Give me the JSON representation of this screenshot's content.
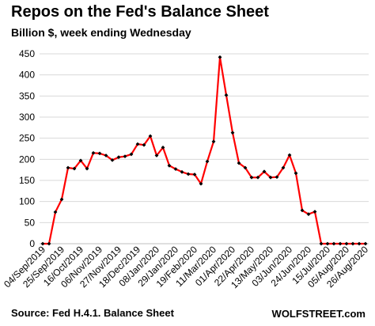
{
  "chart_data": {
    "type": "line",
    "title": "Repos on the Fed's Balance Sheet",
    "subtitle": "Billion $, week ending Wednesday",
    "xlabel": "",
    "ylabel": "",
    "ylim": [
      0,
      450
    ],
    "yticks": [
      0,
      50,
      100,
      150,
      200,
      250,
      300,
      350,
      400,
      450
    ],
    "grid": true,
    "legend": "none",
    "line_color": "#ff0000",
    "marker_color": "#000000",
    "grid_color": "#d9d9d9",
    "x_tick_labels": [
      "04/Sep/2019",
      "25/Sep/2019",
      "16/Oct/2019",
      "06/Nov/2019",
      "27/Nov/2019",
      "18/Dec/2019",
      "08/Jan/2020",
      "29/Jan/2020",
      "19/Feb/2020",
      "11/Mar/2020",
      "01/Apr/2020",
      "22/Apr/2020",
      "13/May/2020",
      "03/Jun/2020",
      "24/Jun/2020",
      "15/Jul/2020",
      "05/Aug/2020",
      "26/Aug/2020"
    ],
    "x": [
      "04/Sep/2019",
      "11/Sep/2019",
      "18/Sep/2019",
      "25/Sep/2019",
      "02/Oct/2019",
      "09/Oct/2019",
      "16/Oct/2019",
      "23/Oct/2019",
      "30/Oct/2019",
      "06/Nov/2019",
      "13/Nov/2019",
      "20/Nov/2019",
      "27/Nov/2019",
      "04/Dec/2019",
      "11/Dec/2019",
      "18/Dec/2019",
      "25/Dec/2019",
      "01/Jan/2020",
      "08/Jan/2020",
      "15/Jan/2020",
      "22/Jan/2020",
      "29/Jan/2020",
      "05/Feb/2020",
      "12/Feb/2020",
      "19/Feb/2020",
      "26/Feb/2020",
      "04/Mar/2020",
      "11/Mar/2020",
      "18/Mar/2020",
      "25/Mar/2020",
      "01/Apr/2020",
      "08/Apr/2020",
      "15/Apr/2020",
      "22/Apr/2020",
      "29/Apr/2020",
      "06/May/2020",
      "13/May/2020",
      "20/May/2020",
      "27/May/2020",
      "03/Jun/2020",
      "10/Jun/2020",
      "17/Jun/2020",
      "24/Jun/2020",
      "01/Jul/2020",
      "08/Jul/2020",
      "15/Jul/2020",
      "22/Jul/2020",
      "29/Jul/2020",
      "05/Aug/2020",
      "12/Aug/2020",
      "19/Aug/2020",
      "26/Aug/2020"
    ],
    "values": [
      0,
      0,
      75,
      105,
      180,
      178,
      197,
      178,
      215,
      214,
      209,
      198,
      205,
      207,
      212,
      236,
      234,
      255,
      209,
      228,
      185,
      177,
      170,
      165,
      164,
      142,
      195,
      242,
      442,
      352,
      263,
      191,
      180,
      157,
      157,
      171,
      157,
      158,
      180,
      210,
      167,
      79,
      70,
      76,
      0,
      0,
      0,
      0,
      0,
      0,
      0,
      0
    ]
  },
  "footer": {
    "source": "Source: Fed H.4.1. Balance Sheet",
    "brand": "WOLFSTREET.com"
  }
}
